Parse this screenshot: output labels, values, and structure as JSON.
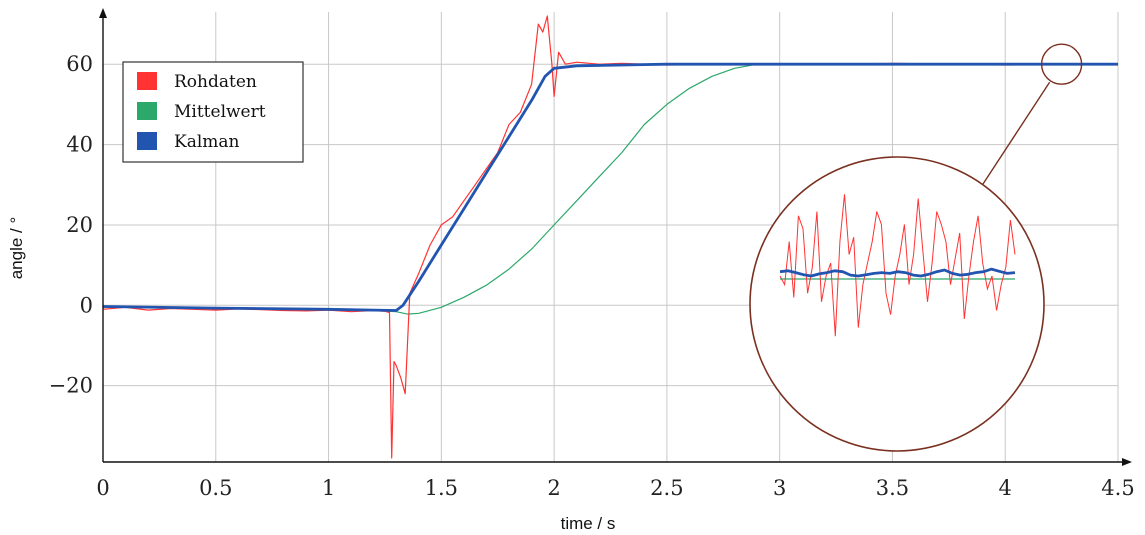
{
  "chart_data": {
    "type": "line",
    "xlabel": "time / s",
    "ylabel": "angle / °",
    "xlim": [
      0,
      4.5
    ],
    "ylim": [
      -39,
      73
    ],
    "xticks": [
      0,
      0.5,
      1,
      1.5,
      2,
      2.5,
      3,
      3.5,
      4,
      4.5
    ],
    "xtick_labels": [
      "0",
      "0.5",
      "1",
      "1.5",
      "2",
      "2.5",
      "3",
      "3.5",
      "4",
      "4.5"
    ],
    "yticks": [
      -20,
      0,
      20,
      40,
      60
    ],
    "ytick_labels": [
      "−20",
      "0",
      "20",
      "40",
      "60"
    ],
    "grid": true,
    "legend_position": "top-left",
    "series": [
      {
        "name": "Rohdaten",
        "color": "#ff3333",
        "x": [
          0,
          0.1,
          0.2,
          0.3,
          0.4,
          0.5,
          0.6,
          0.7,
          0.8,
          0.9,
          1.0,
          1.1,
          1.2,
          1.25,
          1.27,
          1.28,
          1.29,
          1.3,
          1.32,
          1.34,
          1.36,
          1.4,
          1.45,
          1.5,
          1.55,
          1.6,
          1.65,
          1.7,
          1.75,
          1.8,
          1.85,
          1.9,
          1.93,
          1.95,
          1.97,
          1.99,
          2.0,
          2.02,
          2.05,
          2.1,
          2.2,
          2.3,
          2.5,
          2.8,
          3.0,
          3.5,
          4.0,
          4.5
        ],
        "y": [
          -1,
          -0.5,
          -1.2,
          -0.8,
          -1,
          -1.2,
          -0.9,
          -1.1,
          -1.3,
          -1.4,
          -1.2,
          -1.6,
          -1.3,
          -1.5,
          -1.8,
          -38,
          -14,
          -15,
          -18,
          -22,
          3,
          8,
          15,
          20,
          22,
          26,
          30,
          34,
          38,
          45,
          48,
          55,
          70,
          68,
          72,
          60,
          52,
          63,
          60,
          60.5,
          60,
          60.2,
          59.8,
          60,
          60,
          60.2,
          59.8,
          60
        ]
      },
      {
        "name": "Mittelwert",
        "color": "#2ca86a",
        "x": [
          0,
          0.5,
          1.0,
          1.2,
          1.3,
          1.35,
          1.4,
          1.5,
          1.6,
          1.7,
          1.8,
          1.9,
          2.0,
          2.1,
          2.2,
          2.3,
          2.4,
          2.5,
          2.6,
          2.7,
          2.8,
          2.9,
          3.0,
          3.5,
          4.0,
          4.5
        ],
        "y": [
          -0.5,
          -0.6,
          -1.0,
          -1.3,
          -1.6,
          -2.2,
          -2.0,
          -0.5,
          2,
          5,
          9,
          14,
          20,
          26,
          32,
          38,
          45,
          50,
          54,
          57,
          59,
          60,
          60,
          60,
          60,
          60
        ]
      },
      {
        "name": "Kalman",
        "color": "#2255b0",
        "x": [
          0,
          0.5,
          1.0,
          1.2,
          1.3,
          1.33,
          1.4,
          1.5,
          1.6,
          1.7,
          1.8,
          1.9,
          1.96,
          2.0,
          2.1,
          2.5,
          3.0,
          3.5,
          4.0,
          4.5
        ],
        "y": [
          -0.3,
          -0.7,
          -1.0,
          -1.2,
          -1.3,
          0,
          6,
          15,
          24,
          33,
          42,
          51,
          57,
          59,
          59.6,
          60,
          60,
          60,
          60,
          60
        ]
      }
    ],
    "inset": {
      "description_visible": "magnified circle near t=4.25 s, angle=60",
      "source_x": 4.25,
      "source_y": 60,
      "rohdaten_noise": [
        0,
        -2,
        8,
        -5,
        14,
        11,
        -4,
        2,
        15,
        -6,
        0,
        3,
        -14,
        8,
        19,
        5,
        9,
        -12,
        -2,
        3,
        8,
        15,
        12,
        -4,
        -9,
        0,
        5,
        12,
        -2,
        5,
        18,
        6,
        -6,
        3,
        15,
        12,
        8,
        -2,
        4,
        10,
        -10,
        0,
        8,
        14,
        3,
        -3,
        0,
        -8,
        -2,
        2,
        13,
        5
      ],
      "kalman_noise": [
        1,
        1.2,
        0.8,
        0.3,
        0,
        0.5,
        0.8,
        1.2,
        1,
        0.2,
        0,
        0.3,
        0.6,
        0.8,
        0.6,
        1,
        0.8,
        0.2,
        0,
        0.4,
        1,
        1.4,
        0.6,
        0.2,
        0.4,
        0.8,
        1,
        1.6,
        1.1,
        0.6,
        0.8
      ]
    }
  }
}
